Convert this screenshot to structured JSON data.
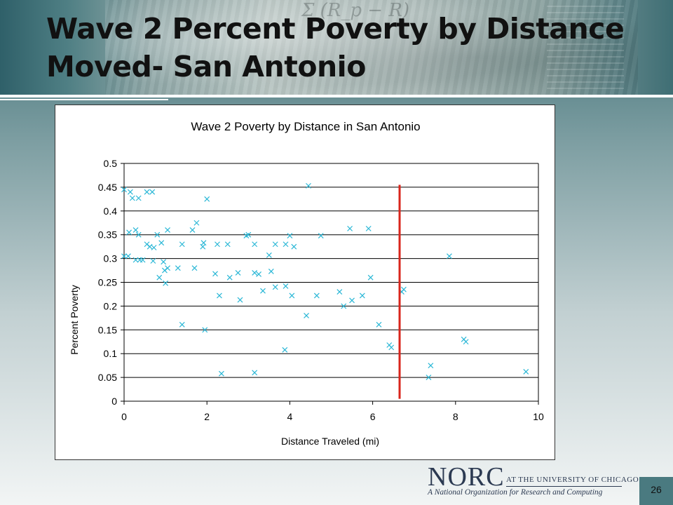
{
  "slide": {
    "title_line1": "Wave 2 Percent Poverty by Distance",
    "title_line2": "Moved- San Antonio",
    "page_number": "26",
    "logo": {
      "name": "NORC",
      "affiliation": "AT THE UNIVERSITY OF CHICAGO",
      "tagline": "A National Organization for Research and Computing"
    },
    "header_formula": "Σ (R_p − R)"
  },
  "colors": {
    "marker": "#2ab7d6",
    "reference_line": "#d9251c",
    "grid": "#000000"
  },
  "chart_data": {
    "type": "scatter",
    "title": "Wave 2 Poverty by Distance in San Antonio",
    "xlabel": "Distance Traveled (mi)",
    "ylabel": "Percent Poverty",
    "xlim": [
      0,
      10
    ],
    "ylim": [
      0,
      0.5
    ],
    "xticks": [
      "0",
      "2",
      "4",
      "6",
      "8",
      "10"
    ],
    "yticks": [
      "0",
      "0.05",
      "0.1",
      "0.15",
      "0.2",
      "0.25",
      "0.3",
      "0.35",
      "0.4",
      "0.45",
      "0.5"
    ],
    "grid": "horizontal",
    "marker": "x",
    "reference_line": {
      "x": 6.65,
      "y_from": 0.005,
      "y_to": 0.455
    },
    "points": [
      [
        0.0,
        0.445
      ],
      [
        0.15,
        0.44
      ],
      [
        0.2,
        0.427
      ],
      [
        0.35,
        0.427
      ],
      [
        0.55,
        0.44
      ],
      [
        0.68,
        0.44
      ],
      [
        0.0,
        0.305
      ],
      [
        0.1,
        0.305
      ],
      [
        0.12,
        0.355
      ],
      [
        0.28,
        0.36
      ],
      [
        0.35,
        0.35
      ],
      [
        0.28,
        0.297
      ],
      [
        0.38,
        0.297
      ],
      [
        0.45,
        0.297
      ],
      [
        0.55,
        0.33
      ],
      [
        0.62,
        0.325
      ],
      [
        0.72,
        0.323
      ],
      [
        0.8,
        0.35
      ],
      [
        0.9,
        0.333
      ],
      [
        0.95,
        0.293
      ],
      [
        0.98,
        0.275
      ],
      [
        0.7,
        0.295
      ],
      [
        0.85,
        0.26
      ],
      [
        1.0,
        0.248
      ],
      [
        1.05,
        0.28
      ],
      [
        1.05,
        0.36
      ],
      [
        1.3,
        0.28
      ],
      [
        1.4,
        0.33
      ],
      [
        1.4,
        0.161
      ],
      [
        1.65,
        0.36
      ],
      [
        1.7,
        0.28
      ],
      [
        1.75,
        0.375
      ],
      [
        1.9,
        0.325
      ],
      [
        1.92,
        0.333
      ],
      [
        1.95,
        0.15
      ],
      [
        2.0,
        0.425
      ],
      [
        2.2,
        0.268
      ],
      [
        2.25,
        0.33
      ],
      [
        2.3,
        0.222
      ],
      [
        2.35,
        0.058
      ],
      [
        2.5,
        0.33
      ],
      [
        2.55,
        0.26
      ],
      [
        2.75,
        0.27
      ],
      [
        2.8,
        0.213
      ],
      [
        2.95,
        0.348
      ],
      [
        3.0,
        0.35
      ],
      [
        3.15,
        0.33
      ],
      [
        3.15,
        0.27
      ],
      [
        3.15,
        0.06
      ],
      [
        3.25,
        0.267
      ],
      [
        3.35,
        0.232
      ],
      [
        3.5,
        0.307
      ],
      [
        3.55,
        0.273
      ],
      [
        3.65,
        0.33
      ],
      [
        3.65,
        0.24
      ],
      [
        3.9,
        0.33
      ],
      [
        3.9,
        0.242
      ],
      [
        3.88,
        0.108
      ],
      [
        4.0,
        0.348
      ],
      [
        4.05,
        0.222
      ],
      [
        4.1,
        0.325
      ],
      [
        4.4,
        0.18
      ],
      [
        4.45,
        0.453
      ],
      [
        4.65,
        0.222
      ],
      [
        4.75,
        0.348
      ],
      [
        5.2,
        0.23
      ],
      [
        5.3,
        0.2
      ],
      [
        5.45,
        0.363
      ],
      [
        5.5,
        0.212
      ],
      [
        5.75,
        0.222
      ],
      [
        5.9,
        0.363
      ],
      [
        5.95,
        0.26
      ],
      [
        6.15,
        0.161
      ],
      [
        6.4,
        0.118
      ],
      [
        6.45,
        0.113
      ],
      [
        6.7,
        0.23
      ],
      [
        6.75,
        0.235
      ],
      [
        7.35,
        0.05
      ],
      [
        7.4,
        0.075
      ],
      [
        7.85,
        0.305
      ],
      [
        8.2,
        0.13
      ],
      [
        8.25,
        0.125
      ],
      [
        9.7,
        0.062
      ]
    ]
  }
}
